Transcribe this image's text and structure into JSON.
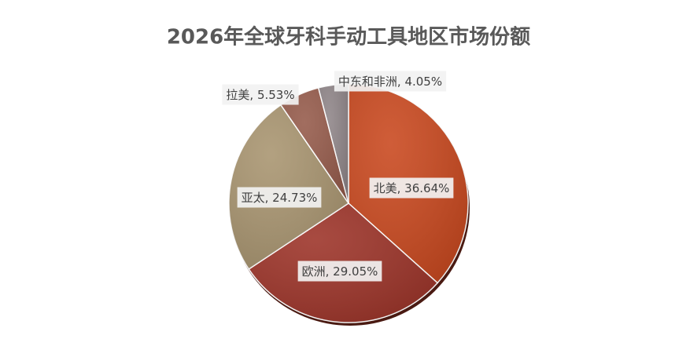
{
  "chart_data": {
    "type": "pie",
    "title": "2026年全球牙科手动工具地区市场份额",
    "categories": [
      "北美",
      "欧洲",
      "亚太",
      "拉美",
      "中东和非洲"
    ],
    "values": [
      36.64,
      29.05,
      24.73,
      5.53,
      4.05
    ],
    "value_labels": [
      ", 36.64%",
      ", 29.05%",
      ", 24.73%",
      ", 5.53%",
      ", 4.05%"
    ],
    "colors": [
      "#c9471d",
      "#9c3227",
      "#a8946f",
      "#955a4a",
      "#8f8588"
    ]
  }
}
